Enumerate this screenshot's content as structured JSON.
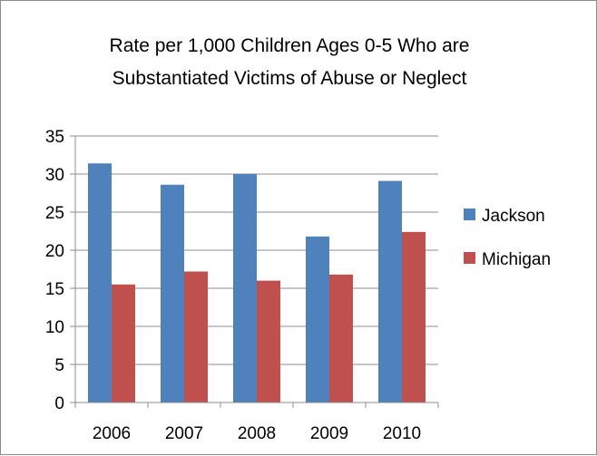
{
  "chart_data": {
    "type": "bar",
    "title_lines": [
      "Rate per 1,000 Children Ages 0-5 Who are",
      "Substantiated Victims of Abuse or Neglect"
    ],
    "categories": [
      "2006",
      "2007",
      "2008",
      "2009",
      "2010"
    ],
    "series": [
      {
        "name": "Jackson",
        "color": "#4F81BD",
        "values": [
          31.4,
          28.6,
          30.0,
          21.8,
          29.1
        ]
      },
      {
        "name": "Michigan",
        "color": "#C0504D",
        "values": [
          15.5,
          17.2,
          16.0,
          16.8,
          22.4
        ]
      }
    ],
    "ylim": [
      0,
      35
    ],
    "yticks": [
      "0",
      "5",
      "10",
      "15",
      "20",
      "25",
      "30",
      "35"
    ],
    "grid": true,
    "legend_position": "right"
  }
}
